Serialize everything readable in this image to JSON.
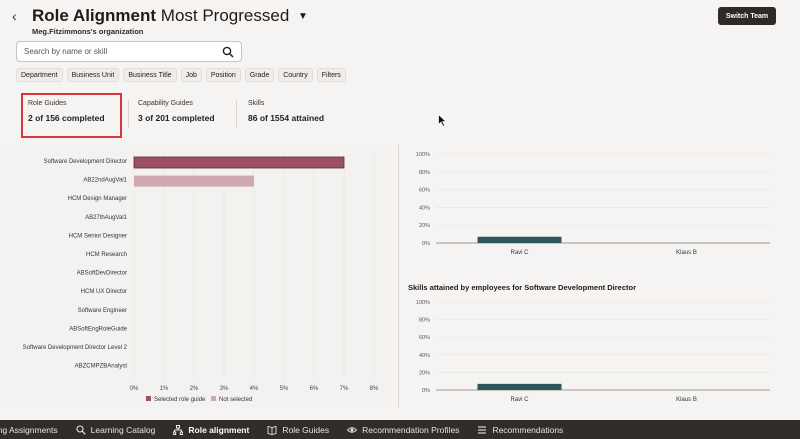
{
  "header": {
    "title_strong": "Role Alignment",
    "title_rest": "Most Progressed",
    "org": "Meg.Fitzimmons's organization",
    "switch_team": "Switch Team"
  },
  "search": {
    "placeholder": "Search by name or skill"
  },
  "filters": [
    "Department",
    "Business Unit",
    "Business Title",
    "Job",
    "Position",
    "Grade",
    "Country",
    "Filters"
  ],
  "metrics": [
    {
      "label": "Role Guides",
      "value": "2 of 156 completed"
    },
    {
      "label": "Capability Guides",
      "value": "3 of 201 completed"
    },
    {
      "label": "Skills",
      "value": "86 of 1554 attained"
    }
  ],
  "colors": {
    "selected": "#9c5064",
    "not_selected": "#cfa9b1",
    "employee_bar": "#2f5658"
  },
  "chart_data": [
    {
      "type": "bar",
      "orientation": "horizontal",
      "title": "",
      "categories": [
        "Software Development Director",
        "AB22ndAugVal1",
        "HCM Design Manager",
        "AB27thAugVal1",
        "HCM Senior Designer",
        "HCM Research",
        "ABSoftDevDirector",
        "HCM UX Director",
        "Software Engineer",
        "ABSoftEngRoleGuide",
        "Software Development Director Level 2",
        "ABZCMPZBAnalyst"
      ],
      "series": [
        {
          "name": "Selected role guide",
          "values": [
            7,
            0,
            0,
            0,
            0,
            0,
            0,
            0,
            0,
            0,
            0,
            0
          ]
        },
        {
          "name": "Not selected",
          "values": [
            0,
            4,
            0,
            0,
            0,
            0,
            0,
            0,
            0,
            0,
            0,
            0
          ]
        }
      ],
      "xticks": [
        "0%",
        "1%",
        "2%",
        "3%",
        "4%",
        "5%",
        "6%",
        "7%",
        "8%"
      ],
      "xlim": [
        0,
        8
      ],
      "legend": [
        "Selected role guide",
        "Not selected"
      ]
    },
    {
      "type": "bar",
      "title": "",
      "categories": [
        "Ravi C",
        "Klaus B"
      ],
      "values": [
        7,
        0
      ],
      "yticks": [
        "0%",
        "20%",
        "40%",
        "60%",
        "80%",
        "100%"
      ],
      "ylim": [
        0,
        100
      ]
    },
    {
      "type": "bar",
      "title": "Skills attained by employees for Software Development Director",
      "categories": [
        "Ravi C",
        "Klaus B"
      ],
      "values": [
        7,
        0
      ],
      "yticks": [
        "0%",
        "20%",
        "40%",
        "60%",
        "80%",
        "100%"
      ],
      "ylim": [
        0,
        100
      ]
    }
  ],
  "bottom_nav": [
    {
      "label": "Learning Assignments",
      "icon": "clipboard-icon"
    },
    {
      "label": "Learning Catalog",
      "icon": "search-icon"
    },
    {
      "label": "Role alignment",
      "icon": "org-chart-icon",
      "active": true
    },
    {
      "label": "Role Guides",
      "icon": "book-icon"
    },
    {
      "label": "Recommendation Profiles",
      "icon": "eye-icon"
    },
    {
      "label": "Recommendations",
      "icon": "list-icon"
    }
  ]
}
